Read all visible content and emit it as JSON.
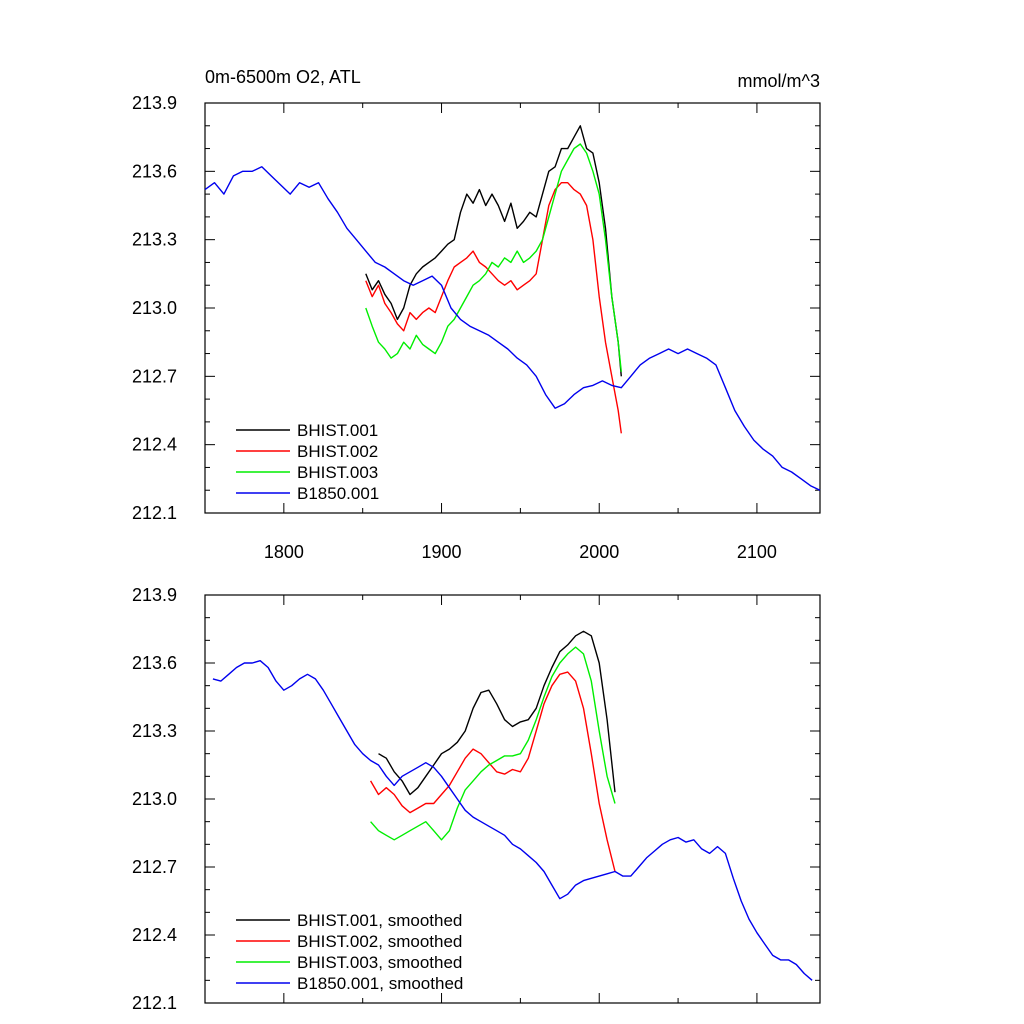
{
  "figure": {
    "title_left": "0m-6500m O2, ATL",
    "title_right": "mmol/m^3"
  },
  "chart_data": [
    {
      "type": "line",
      "title": "0m-6500m O2, ATL",
      "units": "mmol/m^3",
      "xlim": [
        1750,
        2140
      ],
      "ylim": [
        212.1,
        213.9
      ],
      "yticks": [
        212.1,
        212.4,
        212.7,
        213.0,
        213.3,
        213.6,
        213.9
      ],
      "ytick_labels": [
        "212.1",
        "212.4",
        "212.7",
        "213.0",
        "213.3",
        "213.6",
        "213.9"
      ],
      "xticks": [
        1800,
        1900,
        2000,
        2100
      ],
      "xtick_labels": [
        "1800",
        "1900",
        "2000",
        "2100"
      ],
      "legend_position": "bottom-left",
      "series": [
        {
          "name": "BHIST.001",
          "color": "#000000",
          "x": [
            1852,
            1856,
            1860,
            1864,
            1868,
            1872,
            1876,
            1880,
            1884,
            1888,
            1892,
            1896,
            1900,
            1904,
            1908,
            1912,
            1916,
            1920,
            1924,
            1928,
            1932,
            1936,
            1940,
            1944,
            1948,
            1952,
            1956,
            1960,
            1964,
            1968,
            1972,
            1976,
            1980,
            1984,
            1988,
            1992,
            1996,
            2000,
            2004,
            2008,
            2012,
            2014
          ],
          "y": [
            213.15,
            213.08,
            213.12,
            213.06,
            213.02,
            212.95,
            213.0,
            213.1,
            213.15,
            213.18,
            213.2,
            213.22,
            213.25,
            213.28,
            213.3,
            213.42,
            213.5,
            213.46,
            213.52,
            213.45,
            213.5,
            213.45,
            213.38,
            213.46,
            213.35,
            213.38,
            213.42,
            213.4,
            213.5,
            213.6,
            213.62,
            213.7,
            213.7,
            213.75,
            213.8,
            213.7,
            213.68,
            213.55,
            213.35,
            213.05,
            212.85,
            212.7
          ]
        },
        {
          "name": "BHIST.002",
          "color": "#ff0000",
          "x": [
            1852,
            1856,
            1860,
            1864,
            1868,
            1872,
            1876,
            1880,
            1884,
            1888,
            1892,
            1896,
            1900,
            1904,
            1908,
            1912,
            1916,
            1920,
            1924,
            1928,
            1932,
            1936,
            1940,
            1944,
            1948,
            1952,
            1956,
            1960,
            1964,
            1968,
            1972,
            1976,
            1980,
            1984,
            1988,
            1992,
            1996,
            2000,
            2004,
            2008,
            2012,
            2014
          ],
          "y": [
            213.12,
            213.05,
            213.1,
            213.02,
            212.98,
            212.93,
            212.9,
            212.98,
            212.95,
            212.98,
            213.0,
            212.98,
            213.05,
            213.12,
            213.18,
            213.2,
            213.22,
            213.25,
            213.2,
            213.18,
            213.15,
            213.12,
            213.1,
            213.12,
            213.08,
            213.1,
            213.12,
            213.15,
            213.3,
            213.45,
            213.52,
            213.55,
            213.55,
            213.52,
            213.5,
            213.45,
            213.3,
            213.05,
            212.85,
            212.7,
            212.55,
            212.45
          ]
        },
        {
          "name": "BHIST.003",
          "color": "#00ee00",
          "x": [
            1852,
            1856,
            1860,
            1864,
            1868,
            1872,
            1876,
            1880,
            1884,
            1888,
            1892,
            1896,
            1900,
            1904,
            1908,
            1912,
            1916,
            1920,
            1924,
            1928,
            1932,
            1936,
            1940,
            1944,
            1948,
            1952,
            1956,
            1960,
            1964,
            1968,
            1972,
            1976,
            1980,
            1984,
            1988,
            1992,
            1996,
            2000,
            2004,
            2008,
            2012,
            2014
          ],
          "y": [
            213.0,
            212.92,
            212.85,
            212.82,
            212.78,
            212.8,
            212.85,
            212.82,
            212.88,
            212.84,
            212.82,
            212.8,
            212.85,
            212.92,
            212.95,
            213.0,
            213.05,
            213.1,
            213.12,
            213.15,
            213.2,
            213.18,
            213.22,
            213.2,
            213.25,
            213.2,
            213.22,
            213.25,
            213.3,
            213.4,
            213.5,
            213.6,
            213.65,
            213.7,
            213.72,
            213.68,
            213.6,
            213.5,
            213.3,
            213.05,
            212.85,
            212.72
          ]
        },
        {
          "name": "B1850.001",
          "color": "#0000ee",
          "x": [
            1750,
            1756,
            1762,
            1768,
            1774,
            1780,
            1786,
            1792,
            1798,
            1804,
            1810,
            1816,
            1822,
            1828,
            1834,
            1840,
            1846,
            1852,
            1858,
            1864,
            1870,
            1876,
            1882,
            1888,
            1894,
            1900,
            1906,
            1912,
            1918,
            1924,
            1930,
            1936,
            1942,
            1948,
            1954,
            1960,
            1966,
            1972,
            1978,
            1984,
            1990,
            1996,
            2002,
            2008,
            2014,
            2020,
            2026,
            2032,
            2038,
            2044,
            2050,
            2056,
            2062,
            2068,
            2074,
            2080,
            2086,
            2092,
            2098,
            2104,
            2110,
            2116,
            2122,
            2128,
            2134,
            2140
          ],
          "y": [
            213.52,
            213.55,
            213.5,
            213.58,
            213.6,
            213.6,
            213.62,
            213.58,
            213.54,
            213.5,
            213.55,
            213.53,
            213.55,
            213.48,
            213.42,
            213.35,
            213.3,
            213.25,
            213.2,
            213.18,
            213.15,
            213.12,
            213.1,
            213.12,
            213.14,
            213.1,
            213.0,
            212.95,
            212.92,
            212.9,
            212.88,
            212.85,
            212.82,
            212.78,
            212.75,
            212.7,
            212.62,
            212.56,
            212.58,
            212.62,
            212.65,
            212.66,
            212.68,
            212.66,
            212.65,
            212.7,
            212.75,
            212.78,
            212.8,
            212.82,
            212.8,
            212.82,
            212.8,
            212.78,
            212.75,
            212.65,
            212.55,
            212.48,
            212.42,
            212.38,
            212.35,
            212.3,
            212.28,
            212.25,
            212.22,
            212.2
          ]
        }
      ]
    },
    {
      "type": "line",
      "title": "",
      "xlim": [
        1750,
        2140
      ],
      "ylim": [
        212.1,
        213.9
      ],
      "yticks": [
        212.1,
        212.4,
        212.7,
        213.0,
        213.3,
        213.6,
        213.9
      ],
      "ytick_labels": [
        "212.1",
        "212.4",
        "212.7",
        "213.0",
        "213.3",
        "213.6",
        "213.9"
      ],
      "xticks": [
        1800,
        1900,
        2000,
        2100
      ],
      "xtick_labels": [],
      "legend_position": "bottom-left",
      "series": [
        {
          "name": "BHIST.001, smoothed",
          "color": "#000000",
          "x": [
            1860,
            1865,
            1870,
            1875,
            1880,
            1885,
            1890,
            1895,
            1900,
            1905,
            1910,
            1915,
            1920,
            1925,
            1930,
            1935,
            1940,
            1945,
            1950,
            1955,
            1960,
            1965,
            1970,
            1975,
            1980,
            1985,
            1990,
            1995,
            2000,
            2005,
            2010
          ],
          "y": [
            213.2,
            213.18,
            213.12,
            213.08,
            213.02,
            213.05,
            213.1,
            213.15,
            213.2,
            213.22,
            213.25,
            213.3,
            213.4,
            213.47,
            213.48,
            213.42,
            213.35,
            213.32,
            213.34,
            213.35,
            213.4,
            213.5,
            213.58,
            213.65,
            213.68,
            213.72,
            213.74,
            213.72,
            213.6,
            213.35,
            213.03
          ]
        },
        {
          "name": "BHIST.002, smoothed",
          "color": "#ff0000",
          "x": [
            1855,
            1860,
            1865,
            1870,
            1875,
            1880,
            1885,
            1890,
            1895,
            1900,
            1905,
            1910,
            1915,
            1920,
            1925,
            1930,
            1935,
            1940,
            1945,
            1950,
            1955,
            1960,
            1965,
            1970,
            1975,
            1980,
            1985,
            1990,
            1995,
            2000,
            2005,
            2010
          ],
          "y": [
            213.08,
            213.02,
            213.05,
            213.02,
            212.97,
            212.94,
            212.96,
            212.98,
            212.98,
            213.02,
            213.06,
            213.12,
            213.18,
            213.22,
            213.2,
            213.16,
            213.12,
            213.11,
            213.13,
            213.12,
            213.18,
            213.3,
            213.42,
            213.5,
            213.55,
            213.56,
            213.52,
            213.4,
            213.2,
            212.98,
            212.82,
            212.68
          ]
        },
        {
          "name": "BHIST.003, smoothed",
          "color": "#00ee00",
          "x": [
            1855,
            1860,
            1865,
            1870,
            1875,
            1880,
            1885,
            1890,
            1895,
            1900,
            1905,
            1910,
            1915,
            1920,
            1925,
            1930,
            1935,
            1940,
            1945,
            1950,
            1955,
            1960,
            1965,
            1970,
            1975,
            1980,
            1985,
            1990,
            1995,
            2000,
            2005,
            2010
          ],
          "y": [
            212.9,
            212.86,
            212.84,
            212.82,
            212.84,
            212.86,
            212.88,
            212.9,
            212.86,
            212.82,
            212.86,
            212.96,
            213.04,
            213.08,
            213.12,
            213.15,
            213.17,
            213.19,
            213.19,
            213.2,
            213.26,
            213.35,
            213.45,
            213.54,
            213.6,
            213.64,
            213.67,
            213.64,
            213.52,
            213.3,
            213.1,
            212.98
          ]
        },
        {
          "name": "B1850.001, smoothed",
          "color": "#0000ee",
          "x": [
            1755,
            1760,
            1765,
            1770,
            1775,
            1780,
            1785,
            1790,
            1795,
            1800,
            1805,
            1810,
            1815,
            1820,
            1825,
            1830,
            1835,
            1840,
            1845,
            1850,
            1855,
            1860,
            1865,
            1870,
            1875,
            1880,
            1885,
            1890,
            1895,
            1900,
            1905,
            1910,
            1915,
            1920,
            1925,
            1930,
            1935,
            1940,
            1945,
            1950,
            1955,
            1960,
            1965,
            1970,
            1975,
            1980,
            1985,
            1990,
            1995,
            2000,
            2005,
            2010,
            2015,
            2020,
            2025,
            2030,
            2035,
            2040,
            2045,
            2050,
            2055,
            2060,
            2065,
            2070,
            2075,
            2080,
            2085,
            2090,
            2095,
            2100,
            2105,
            2110,
            2115,
            2120,
            2125,
            2130,
            2135
          ],
          "y": [
            213.53,
            213.52,
            213.55,
            213.58,
            213.6,
            213.6,
            213.61,
            213.58,
            213.52,
            213.48,
            213.5,
            213.53,
            213.55,
            213.53,
            213.48,
            213.42,
            213.36,
            213.3,
            213.24,
            213.2,
            213.17,
            213.15,
            213.1,
            213.06,
            213.1,
            213.12,
            213.14,
            213.16,
            213.14,
            213.1,
            213.05,
            213.0,
            212.95,
            212.92,
            212.9,
            212.88,
            212.86,
            212.84,
            212.8,
            212.78,
            212.75,
            212.72,
            212.68,
            212.62,
            212.56,
            212.58,
            212.62,
            212.64,
            212.65,
            212.66,
            212.67,
            212.68,
            212.66,
            212.66,
            212.7,
            212.74,
            212.77,
            212.8,
            212.82,
            212.83,
            212.81,
            212.82,
            212.78,
            212.76,
            212.79,
            212.76,
            212.65,
            212.55,
            212.47,
            212.41,
            212.36,
            212.31,
            212.29,
            212.29,
            212.27,
            212.23,
            212.2
          ]
        }
      ]
    }
  ]
}
